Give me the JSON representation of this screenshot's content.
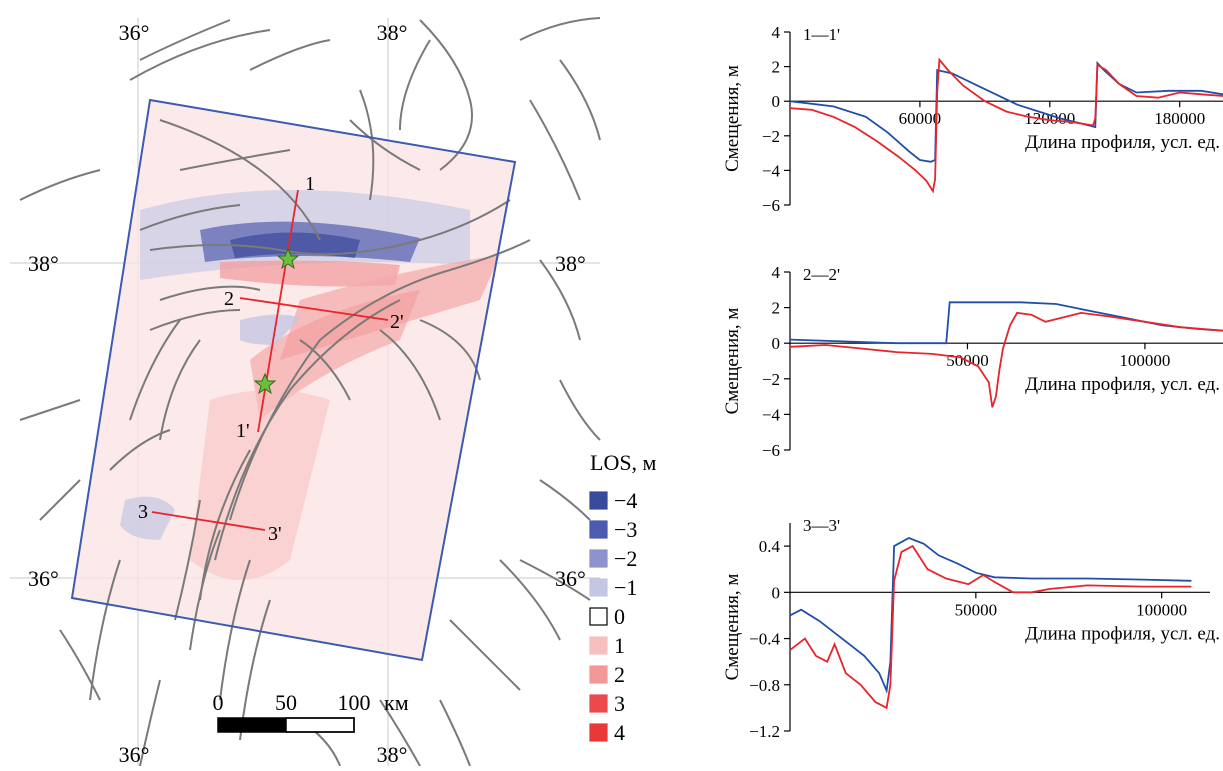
{
  "map": {
    "lon_labels": [
      "36°",
      "38°"
    ],
    "lat_labels": [
      "38°",
      "36°"
    ],
    "profiles": [
      {
        "start": "1",
        "end": "1'"
      },
      {
        "start": "2",
        "end": "2'"
      },
      {
        "start": "3",
        "end": "3'"
      }
    ],
    "scale": {
      "ticks": [
        "0",
        "50",
        "100"
      ],
      "unit": "км"
    },
    "colors": {
      "frame": "#3a5bb0",
      "faults": "#7a7a7a",
      "profile": "#e8242c",
      "epicenter": "#6dbf3a",
      "gridline": "#c8c8c8"
    }
  },
  "legend": {
    "title": "LOS, м",
    "items": [
      {
        "label": "−4",
        "color": "#3a4a9a"
      },
      {
        "label": "−3",
        "color": "#4a5bb0"
      },
      {
        "label": "−2",
        "color": "#8e93cc"
      },
      {
        "label": "−1",
        "color": "#c4c6e2"
      },
      {
        "label": "0",
        "color": "#ffffff"
      },
      {
        "label": "1",
        "color": "#f7c0c0"
      },
      {
        "label": "2",
        "color": "#f29898"
      },
      {
        "label": "3",
        "color": "#ea4a4a"
      },
      {
        "label": "4",
        "color": "#e83838"
      }
    ]
  },
  "chart_data": [
    {
      "type": "line",
      "title": "1—1'",
      "ylabel": "Смещения, м",
      "xlabel": "Длина профиля, усл. ед.",
      "xlim": [
        0,
        200000
      ],
      "ylim": [
        -6,
        4
      ],
      "xticks": [
        60000,
        120000,
        180000
      ],
      "xtick_labels": [
        "60000",
        "120000",
        "180000"
      ],
      "yticks": [
        -6,
        -4,
        -2,
        0,
        2,
        4
      ],
      "ytick_labels": [
        "−6",
        "−4",
        "−2",
        "0",
        "2",
        "4"
      ],
      "series": [
        {
          "color": "#1f4fa8",
          "points": [
            [
              0,
              0
            ],
            [
              20000,
              -0.3
            ],
            [
              35000,
              -0.9
            ],
            [
              45000,
              -1.8
            ],
            [
              55000,
              -2.9
            ],
            [
              60000,
              -3.4
            ],
            [
              65000,
              -3.5
            ],
            [
              67000,
              -3.4
            ],
            [
              68000,
              1.8
            ],
            [
              75000,
              1.6
            ],
            [
              85000,
              1.0
            ],
            [
              95000,
              0.4
            ],
            [
              105000,
              -0.2
            ],
            [
              115000,
              -0.6
            ],
            [
              125000,
              -1.0
            ],
            [
              135000,
              -1.3
            ],
            [
              141000,
              -1.5
            ],
            [
              142000,
              2.2
            ],
            [
              145000,
              1.8
            ],
            [
              152000,
              1.0
            ],
            [
              160000,
              0.5
            ],
            [
              175000,
              0.6
            ],
            [
              190000,
              0.6
            ],
            [
              200000,
              0.4
            ]
          ]
        },
        {
          "color": "#e8242c",
          "points": [
            [
              0,
              -0.4
            ],
            [
              10000,
              -0.5
            ],
            [
              20000,
              -0.9
            ],
            [
              30000,
              -1.5
            ],
            [
              40000,
              -2.3
            ],
            [
              50000,
              -3.2
            ],
            [
              58000,
              -4.0
            ],
            [
              63000,
              -4.6
            ],
            [
              66000,
              -5.2
            ],
            [
              67000,
              -4.5
            ],
            [
              68000,
              0.5
            ],
            [
              69000,
              2.4
            ],
            [
              73000,
              1.8
            ],
            [
              80000,
              0.9
            ],
            [
              90000,
              0.0
            ],
            [
              100000,
              -0.6
            ],
            [
              110000,
              -0.9
            ],
            [
              120000,
              -1.1
            ],
            [
              130000,
              -1.2
            ],
            [
              140000,
              -1.4
            ],
            [
              141000,
              -1.0
            ],
            [
              142000,
              2.1
            ],
            [
              146000,
              1.8
            ],
            [
              152000,
              1.0
            ],
            [
              160000,
              0.3
            ],
            [
              170000,
              0.2
            ],
            [
              180000,
              0.5
            ],
            [
              190000,
              0.4
            ],
            [
              200000,
              0.3
            ]
          ]
        }
      ]
    },
    {
      "type": "line",
      "title": "2—2'",
      "ylabel": "Смещения, м",
      "xlabel": "Длина профиля, усл. ед.",
      "xlim": [
        0,
        122000
      ],
      "ylim": [
        -6,
        4
      ],
      "xticks": [
        50000,
        100000
      ],
      "xtick_labels": [
        "50000",
        "100000"
      ],
      "yticks": [
        -6,
        -4,
        -2,
        0,
        2,
        4
      ],
      "ytick_labels": [
        "−6",
        "−4",
        "−2",
        "0",
        "2",
        "4"
      ],
      "series": [
        {
          "color": "#1f4fa8",
          "points": [
            [
              0,
              0.2
            ],
            [
              15000,
              0.1
            ],
            [
              30000,
              0.0
            ],
            [
              44000,
              0.0
            ],
            [
              45000,
              2.3
            ],
            [
              55000,
              2.3
            ],
            [
              65000,
              2.3
            ],
            [
              75000,
              2.2
            ],
            [
              85000,
              1.8
            ],
            [
              95000,
              1.4
            ],
            [
              105000,
              1.0
            ],
            [
              115000,
              0.8
            ],
            [
              122000,
              0.7
            ]
          ]
        },
        {
          "color": "#e8242c",
          "points": [
            [
              0,
              -0.2
            ],
            [
              10000,
              -0.1
            ],
            [
              20000,
              -0.3
            ],
            [
              30000,
              -0.5
            ],
            [
              40000,
              -0.6
            ],
            [
              48000,
              -0.8
            ],
            [
              53000,
              -1.3
            ],
            [
              56000,
              -2.2
            ],
            [
              57000,
              -3.6
            ],
            [
              58000,
              -3.0
            ],
            [
              59000,
              -1.5
            ],
            [
              60000,
              -0.3
            ],
            [
              62000,
              1.0
            ],
            [
              64000,
              1.7
            ],
            [
              68000,
              1.6
            ],
            [
              72000,
              1.2
            ],
            [
              78000,
              1.5
            ],
            [
              82000,
              1.7
            ],
            [
              90000,
              1.5
            ],
            [
              100000,
              1.2
            ],
            [
              110000,
              0.9
            ],
            [
              122000,
              0.7
            ]
          ]
        }
      ]
    },
    {
      "type": "line",
      "title": "3—3'",
      "ylabel": "Смещения, м",
      "xlabel": "Длина профиля, усл. ед.",
      "xlim": [
        0,
        113000
      ],
      "ylim": [
        -1.2,
        0.6
      ],
      "xticks": [
        50000,
        100000
      ],
      "xtick_labels": [
        "50000",
        "100000"
      ],
      "yticks": [
        -1.2,
        -0.8,
        -0.4,
        0,
        0.4
      ],
      "ytick_labels": [
        "−1.2",
        "−0.8",
        "−0.4",
        "0",
        "0.4"
      ],
      "series": [
        {
          "color": "#1f4fa8",
          "points": [
            [
              0,
              -0.2
            ],
            [
              3000,
              -0.15
            ],
            [
              8000,
              -0.25
            ],
            [
              12000,
              -0.35
            ],
            [
              16000,
              -0.45
            ],
            [
              20000,
              -0.55
            ],
            [
              24000,
              -0.7
            ],
            [
              26000,
              -0.85
            ],
            [
              27000,
              -0.6
            ],
            [
              28000,
              0.4
            ],
            [
              32000,
              0.47
            ],
            [
              36000,
              0.42
            ],
            [
              40000,
              0.32
            ],
            [
              45000,
              0.25
            ],
            [
              50000,
              0.17
            ],
            [
              55000,
              0.13
            ],
            [
              65000,
              0.12
            ],
            [
              80000,
              0.12
            ],
            [
              95000,
              0.11
            ],
            [
              108000,
              0.1
            ]
          ]
        },
        {
          "color": "#e8242c",
          "points": [
            [
              0,
              -0.5
            ],
            [
              4000,
              -0.4
            ],
            [
              7000,
              -0.55
            ],
            [
              10000,
              -0.6
            ],
            [
              12000,
              -0.45
            ],
            [
              15000,
              -0.7
            ],
            [
              19000,
              -0.8
            ],
            [
              23000,
              -0.95
            ],
            [
              26000,
              -1.0
            ],
            [
              27000,
              -0.8
            ],
            [
              28000,
              0.1
            ],
            [
              30000,
              0.35
            ],
            [
              33000,
              0.4
            ],
            [
              37000,
              0.2
            ],
            [
              42000,
              0.12
            ],
            [
              48000,
              0.07
            ],
            [
              52000,
              0.15
            ],
            [
              55000,
              0.09
            ],
            [
              60000,
              0.0
            ],
            [
              65000,
              0.0
            ],
            [
              70000,
              0.03
            ],
            [
              80000,
              0.06
            ],
            [
              95000,
              0.05
            ],
            [
              108000,
              0.05
            ]
          ]
        }
      ]
    }
  ]
}
